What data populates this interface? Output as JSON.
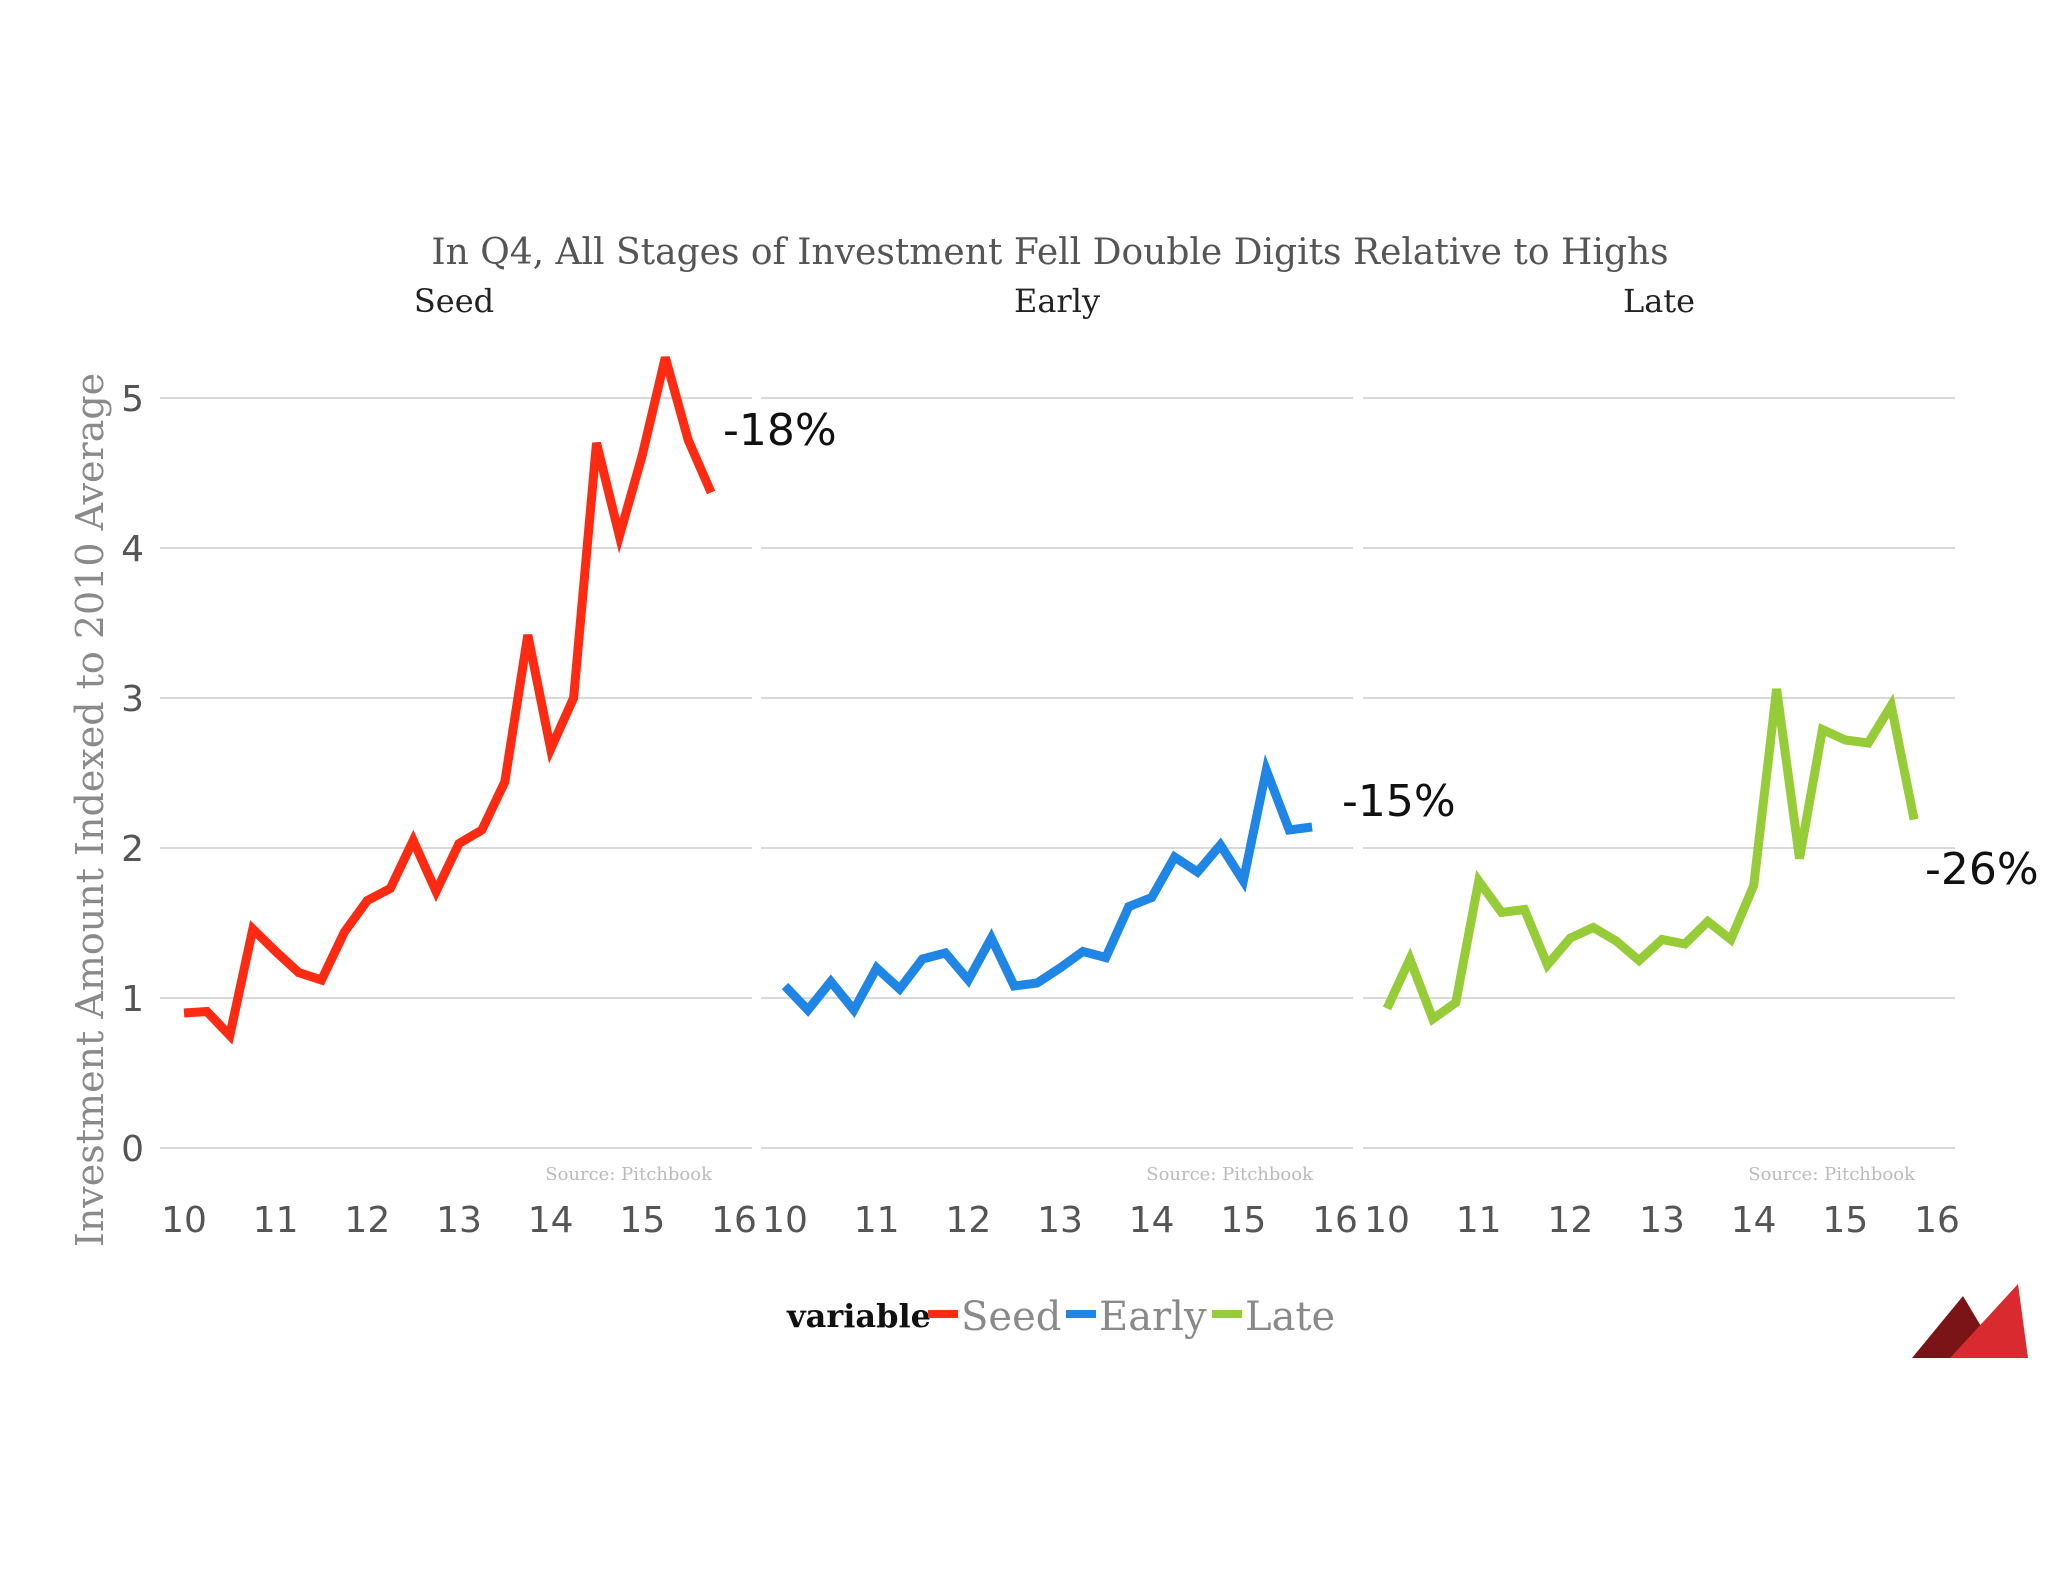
{
  "chart_data": {
    "type": "line",
    "title": "In Q4, All Stages of Investment Fell Double Digits Relative to Highs",
    "ylabel": "Investment Amount Indexed to 2010 Average",
    "xlabel": "",
    "ylim": [
      0,
      5.4
    ],
    "yticks": [
      0,
      1,
      2,
      3,
      4,
      5
    ],
    "xlim": [
      10,
      16
    ],
    "xticks": [
      10,
      11,
      12,
      13,
      14,
      15,
      16
    ],
    "grid": true,
    "source_note": "Source: Pitchbook",
    "legend": {
      "title": "variable",
      "position": "bottom",
      "entries": [
        {
          "name": "Seed",
          "color": "#ff2a12"
        },
        {
          "name": "Early",
          "color": "#1f86e6"
        },
        {
          "name": "Late",
          "color": "#96cc37"
        }
      ]
    },
    "panels": [
      {
        "name": "Seed",
        "color": "#ff2a12",
        "annotation": "-18%",
        "x": [
          10.0,
          10.25,
          10.5,
          10.75,
          11.0,
          11.25,
          11.5,
          11.75,
          12.0,
          12.25,
          12.5,
          12.75,
          13.0,
          13.25,
          13.5,
          13.75,
          14.0,
          14.25,
          14.5,
          14.75,
          15.0,
          15.25,
          15.5,
          15.75
        ],
        "y": [
          0.9,
          0.91,
          0.75,
          1.46,
          1.31,
          1.17,
          1.12,
          1.44,
          1.65,
          1.73,
          2.05,
          1.71,
          2.03,
          2.12,
          2.44,
          3.42,
          2.66,
          3.0,
          4.7,
          4.08,
          4.62,
          5.27,
          4.72,
          4.37
        ]
      },
      {
        "name": "Early",
        "color": "#1f86e6",
        "annotation": "-15%",
        "x": [
          10.0,
          10.25,
          10.5,
          10.75,
          11.0,
          11.25,
          11.5,
          11.75,
          12.0,
          12.25,
          12.5,
          12.75,
          13.0,
          13.25,
          13.5,
          13.75,
          14.0,
          14.25,
          14.5,
          14.75,
          15.0,
          15.25,
          15.5,
          15.75
        ],
        "y": [
          1.08,
          0.92,
          1.11,
          0.92,
          1.2,
          1.06,
          1.26,
          1.3,
          1.12,
          1.4,
          1.08,
          1.1,
          1.2,
          1.31,
          1.27,
          1.61,
          1.67,
          1.94,
          1.84,
          2.02,
          1.78,
          2.52,
          2.12,
          2.14
        ]
      },
      {
        "name": "Late",
        "color": "#96cc37",
        "annotation": "-26%",
        "x": [
          10.0,
          10.25,
          10.5,
          10.75,
          11.0,
          11.25,
          11.5,
          11.75,
          12.0,
          12.25,
          12.5,
          12.75,
          13.0,
          13.25,
          13.5,
          13.75,
          14.0,
          14.25,
          14.5,
          14.75,
          15.0,
          15.25,
          15.5,
          15.75
        ],
        "y": [
          0.93,
          1.26,
          0.86,
          0.97,
          1.78,
          1.57,
          1.59,
          1.22,
          1.4,
          1.47,
          1.38,
          1.25,
          1.39,
          1.36,
          1.51,
          1.39,
          1.75,
          3.06,
          1.93,
          2.79,
          2.72,
          2.7,
          2.95,
          2.19
        ]
      }
    ]
  },
  "logo": {
    "name": "brand-triangles",
    "color_dark": "#7a1416",
    "color_main": "#d92a2f"
  }
}
